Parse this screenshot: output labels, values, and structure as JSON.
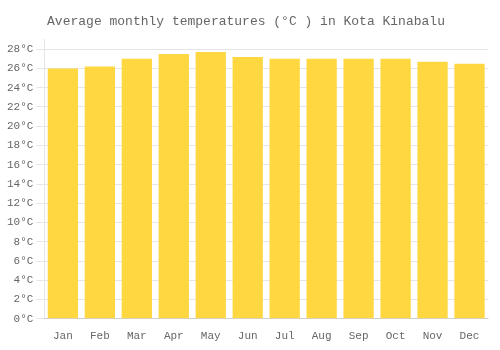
{
  "chart_data": {
    "type": "bar",
    "title": "Average monthly temperatures (°C ) in Kota Kinabalu",
    "categories": [
      "Jan",
      "Feb",
      "Mar",
      "Apr",
      "May",
      "Jun",
      "Jul",
      "Aug",
      "Sep",
      "Oct",
      "Nov",
      "Dec"
    ],
    "values": [
      26.0,
      26.2,
      27.0,
      27.5,
      27.7,
      27.2,
      27.0,
      27.0,
      27.0,
      27.0,
      26.7,
      26.5
    ],
    "color": "#FFD740",
    "ylim": [
      0,
      29
    ],
    "yticks": [
      {
        "value": 0,
        "label": "0°C"
      },
      {
        "value": 2,
        "label": "2°C"
      },
      {
        "value": 4,
        "label": "4°C"
      },
      {
        "value": 6,
        "label": "6°C"
      },
      {
        "value": 8,
        "label": "8°C"
      },
      {
        "value": 10,
        "label": "10°C"
      },
      {
        "value": 12,
        "label": "12°C"
      },
      {
        "value": 14,
        "label": "14°C"
      },
      {
        "value": 16,
        "label": "16°C"
      },
      {
        "value": 18,
        "label": "18°C"
      },
      {
        "value": 20,
        "label": "20°C"
      },
      {
        "value": 22,
        "label": "22°C"
      },
      {
        "value": 24,
        "label": "24°C"
      },
      {
        "value": 26,
        "label": "26°C"
      },
      {
        "value": 28,
        "label": "28°C"
      }
    ],
    "grid": true
  }
}
